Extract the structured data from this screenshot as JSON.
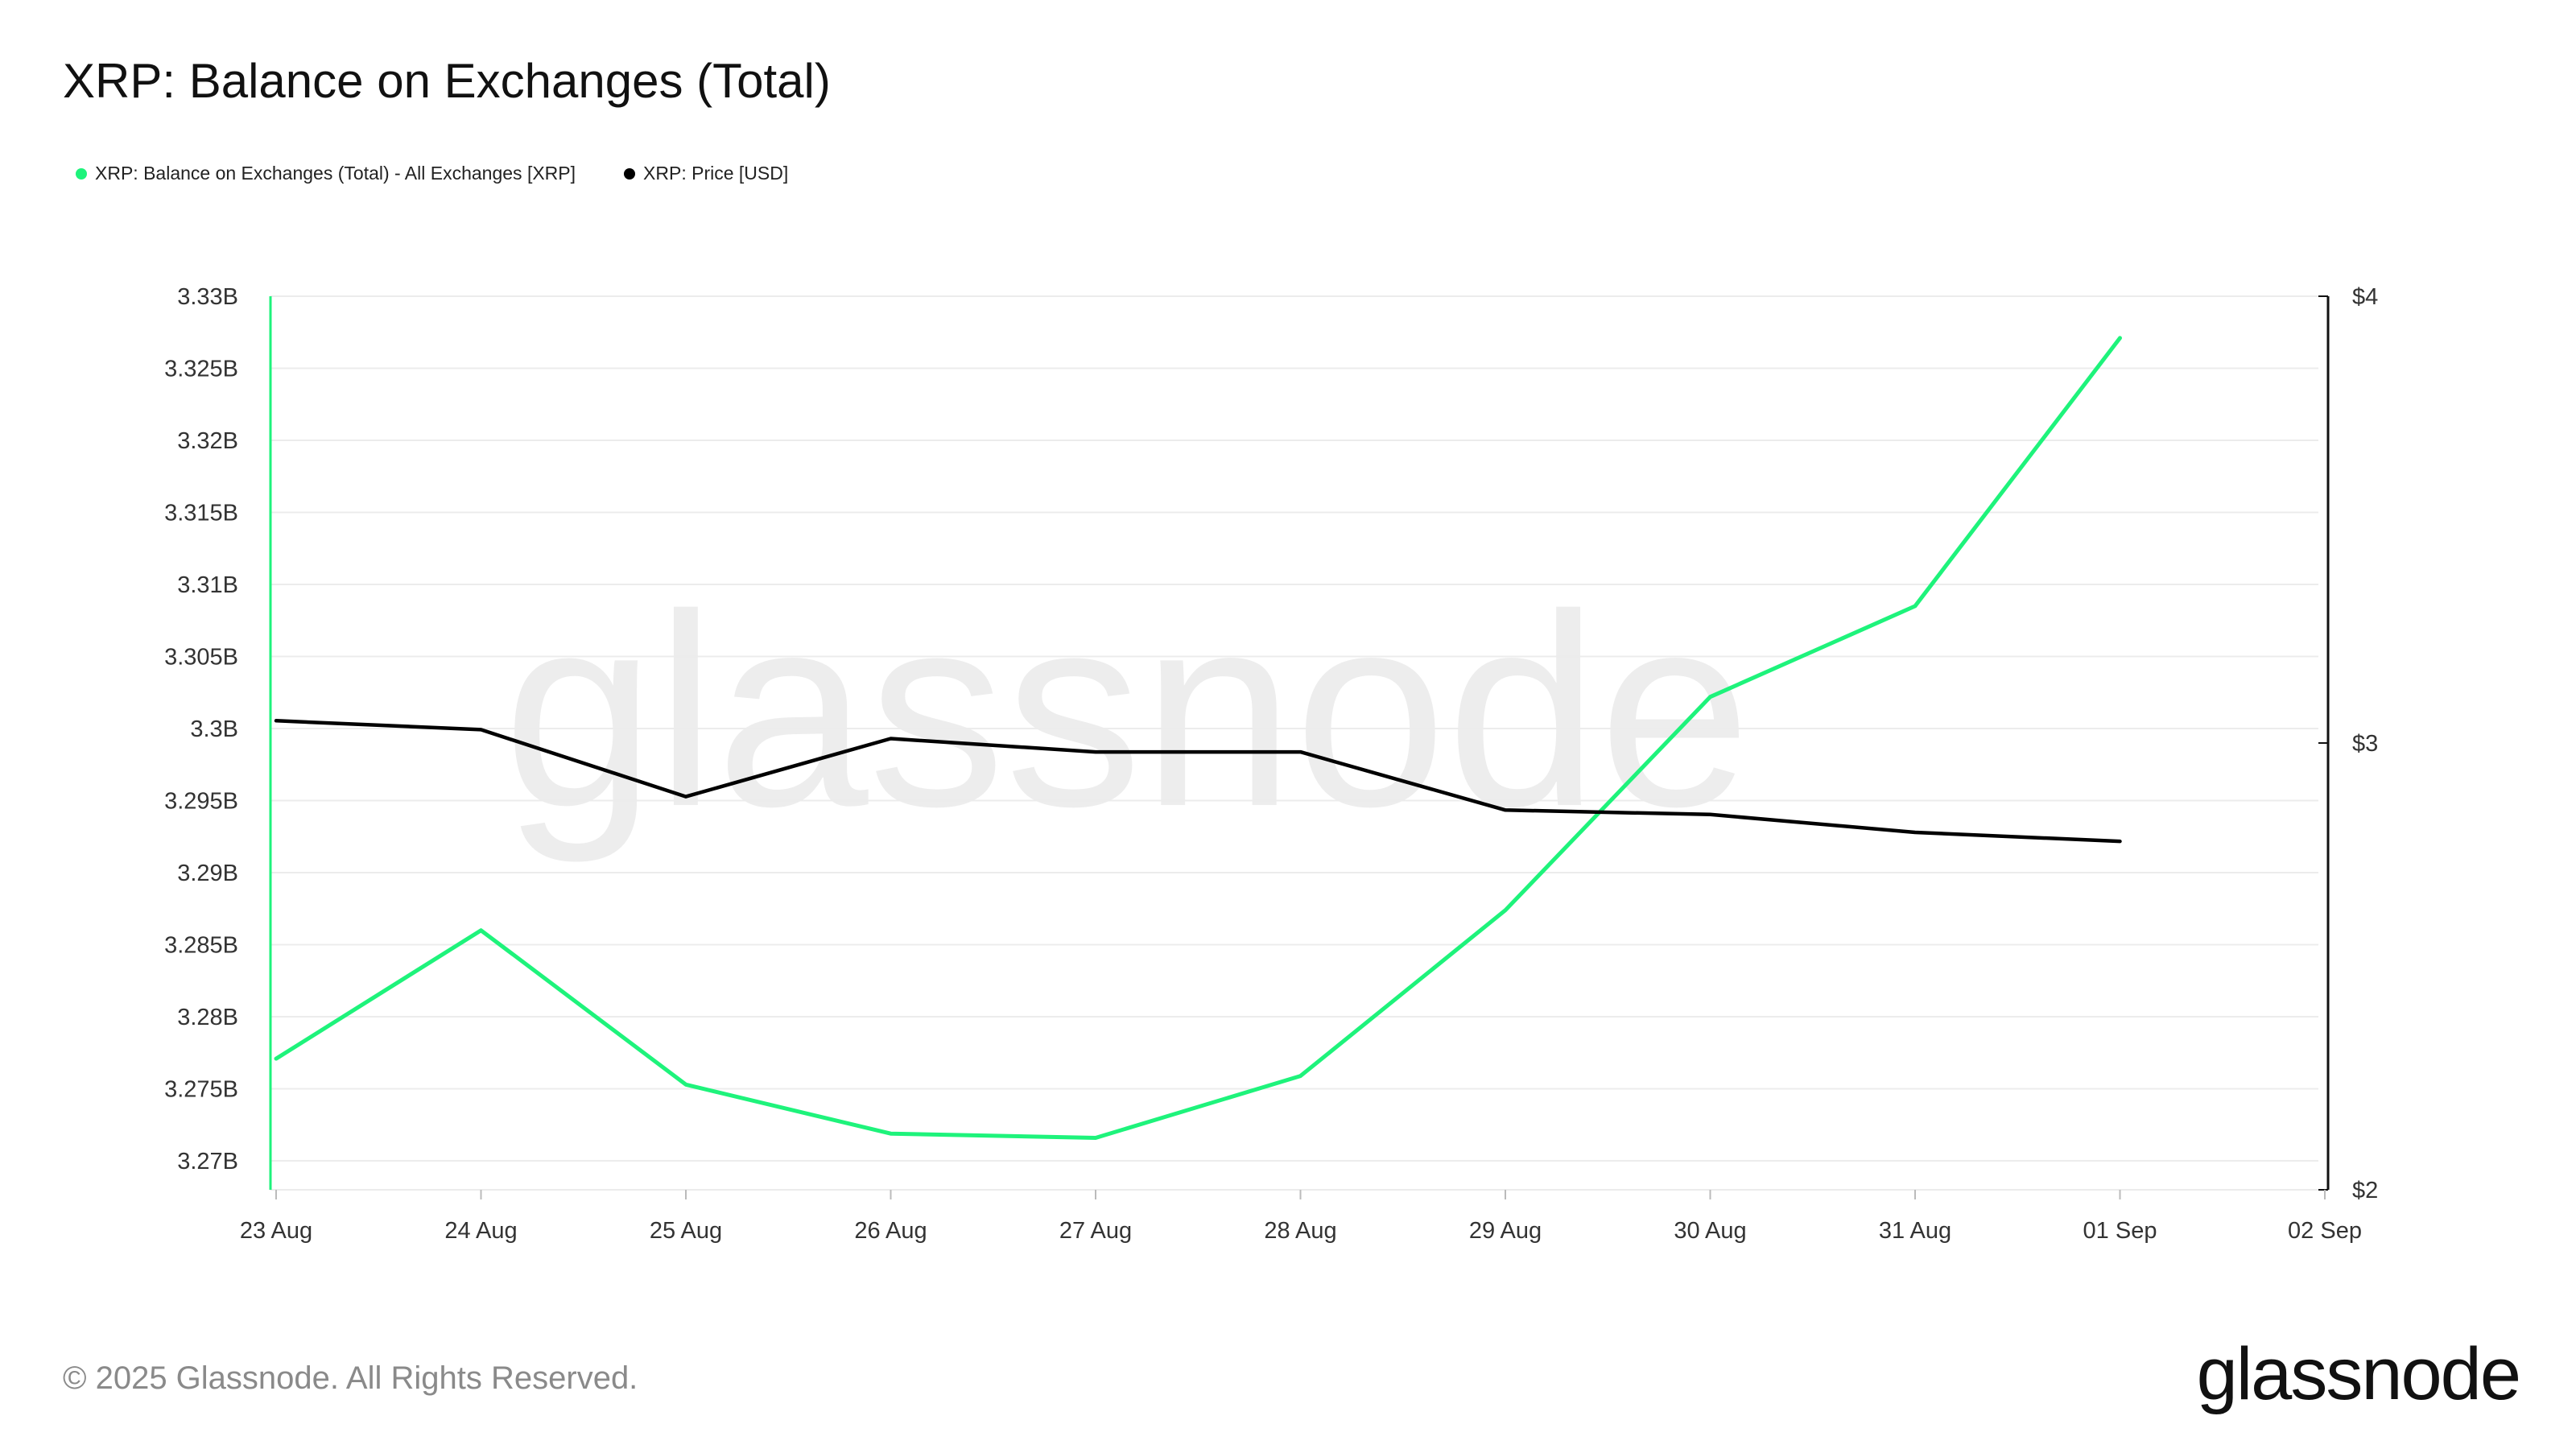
{
  "title": "XRP: Balance on Exchanges (Total)",
  "legend": [
    {
      "label": "XRP: Balance on Exchanges (Total) - All Exchanges [XRP]",
      "color": "#1ef37b"
    },
    {
      "label": "XRP: Price [USD]",
      "color": "#000000"
    }
  ],
  "watermark": "glassnode",
  "footer": "© 2025 Glassnode. All Rights Reserved.",
  "brand": "glassnode",
  "chart_data": {
    "type": "line",
    "title": "XRP: Balance on Exchanges (Total)",
    "x": [
      "23 Aug",
      "24 Aug",
      "25 Aug",
      "26 Aug",
      "27 Aug",
      "28 Aug",
      "29 Aug",
      "30 Aug",
      "31 Aug",
      "01 Sep"
    ],
    "x_ticks": [
      "23 Aug",
      "24 Aug",
      "25 Aug",
      "26 Aug",
      "27 Aug",
      "28 Aug",
      "29 Aug",
      "30 Aug",
      "31 Aug",
      "01 Sep",
      "02 Sep"
    ],
    "y_left": {
      "ticks": [
        "3.33B",
        "3.325B",
        "3.32B",
        "3.315B",
        "3.31B",
        "3.305B",
        "3.3B",
        "3.295B",
        "3.29B",
        "3.285B",
        "3.28B",
        "3.275B",
        "3.27B"
      ],
      "min": 3.268,
      "max": 3.33
    },
    "y_right": {
      "ticks": [
        "$4",
        "$3",
        "$2"
      ],
      "min": 2,
      "max": 4
    },
    "series": [
      {
        "name": "XRP: Balance on Exchanges (Total) - All Exchanges [XRP]",
        "axis": "left",
        "color": "#1ef37b",
        "values": [
          3.2771,
          3.286,
          3.2753,
          3.2719,
          3.2716,
          3.2759,
          3.2874,
          3.3022,
          3.3085,
          3.3271
        ]
      },
      {
        "name": "XRP: Price [USD]",
        "axis": "right",
        "color": "#000000",
        "values": [
          3.05,
          3.03,
          2.88,
          3.01,
          2.98,
          2.98,
          2.85,
          2.84,
          2.8,
          2.78
        ]
      }
    ],
    "grid": true,
    "legend_position": "top-left"
  }
}
